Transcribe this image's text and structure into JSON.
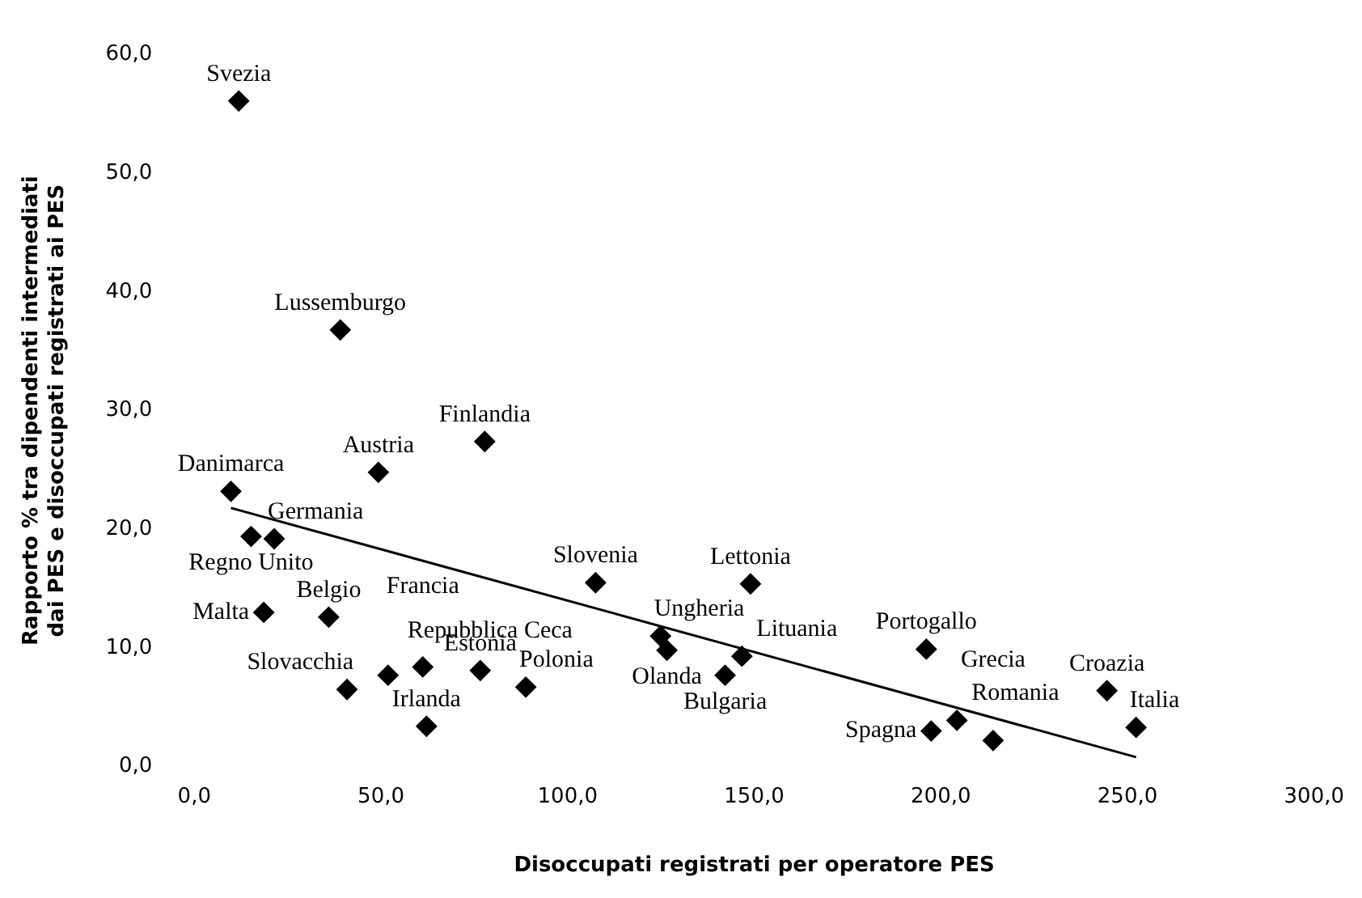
{
  "chart_data": {
    "type": "scatter",
    "xlabel": "Disoccupati registrati per operatore PES",
    "ylabel": "Rapporto % tra dipendenti intermediati dai PES e disoccupati registrati ai PES",
    "series": [
      {
        "type": "scatter",
        "color": "#000000",
        "marker": "diamond",
        "x": [
          11.9,
          39.1,
          77.8,
          49.3,
          9.8,
          15.2,
          21.4,
          18.6,
          36.0,
          40.9,
          51.9,
          61.2,
          62.2,
          76.6,
          88.8,
          107.5,
          149.0,
          124.9,
          126.6,
          142.2,
          146.7,
          196.1,
          197.4,
          204.3,
          214.0,
          244.5,
          252.3
        ],
        "values": [
          56.1,
          36.8,
          27.4,
          24.8,
          23.2,
          19.4,
          19.2,
          13.0,
          12.6,
          6.5,
          7.7,
          8.4,
          3.4,
          8.1,
          6.7,
          15.5,
          15.4,
          11.0,
          9.8,
          7.7,
          9.3,
          9.9,
          3.0,
          3.9,
          2.2,
          6.4,
          3.3
        ]
      },
      {
        "type": "line",
        "color": "#000000",
        "marker": "none",
        "x": [
          9.8,
          252.3
        ],
        "values": [
          21.8,
          0.8
        ]
      }
    ],
    "annotations": [
      {
        "text": "Svezia",
        "x": 11.9,
        "y": 56.1
      },
      {
        "text": "Lussemburgo",
        "x": 39.1,
        "y": 36.8
      },
      {
        "text": "Finlandia",
        "x": 77.8,
        "y": 27.4
      },
      {
        "text": "Austria",
        "x": 49.3,
        "y": 24.8
      },
      {
        "text": "Danimarca",
        "x": 9.8,
        "y": 23.2
      },
      {
        "text": "Regno Unito",
        "x": 15.2,
        "y": 19.4
      },
      {
        "text": "Germania",
        "x": 21.4,
        "y": 19.2
      },
      {
        "text": "Malta",
        "x": 18.6,
        "y": 13.0
      },
      {
        "text": "Belgio",
        "x": 36.0,
        "y": 12.6
      },
      {
        "text": "Slovacchia",
        "x": 40.9,
        "y": 6.5
      },
      {
        "text": "Repubblica Ceca",
        "x": 51.9,
        "y": 7.7
      },
      {
        "text": "Francia",
        "x": 61.2,
        "y": 8.4
      },
      {
        "text": "Irlanda",
        "x": 62.2,
        "y": 3.4
      },
      {
        "text": "Estonia",
        "x": 76.6,
        "y": 8.1
      },
      {
        "text": "Polonia",
        "x": 88.8,
        "y": 6.7
      },
      {
        "text": "Slovenia",
        "x": 107.5,
        "y": 15.5
      },
      {
        "text": "Lettonia",
        "x": 149.0,
        "y": 15.4
      },
      {
        "text": "Ungheria",
        "x": 124.9,
        "y": 11.0
      },
      {
        "text": "Olanda",
        "x": 126.6,
        "y": 9.8
      },
      {
        "text": "Bulgaria",
        "x": 142.2,
        "y": 7.7
      },
      {
        "text": "Lituania",
        "x": 146.7,
        "y": 9.3
      },
      {
        "text": "Portogallo",
        "x": 196.1,
        "y": 9.9
      },
      {
        "text": "Spagna",
        "x": 197.4,
        "y": 3.0
      },
      {
        "text": "Romania",
        "x": 204.3,
        "y": 3.9
      },
      {
        "text": "Grecia",
        "x": 214.0,
        "y": 2.2
      },
      {
        "text": "Croazia",
        "x": 244.5,
        "y": 6.4
      },
      {
        "text": "Italia",
        "x": 252.3,
        "y": 3.3
      }
    ],
    "xlim": [
      0,
      300
    ],
    "xticks": [
      {
        "value": 0,
        "label": "0,0"
      },
      {
        "value": 50,
        "label": "50,0"
      },
      {
        "value": 100,
        "label": "100,0"
      },
      {
        "value": 150,
        "label": "150,0"
      },
      {
        "value": 200,
        "label": "200,0"
      },
      {
        "value": 250,
        "label": "250,0"
      },
      {
        "value": 300,
        "label": "300,0"
      }
    ],
    "ylim": [
      0,
      60
    ],
    "yticks": [
      {
        "value": 0,
        "label": "0,0"
      },
      {
        "value": 10,
        "label": "10,0"
      },
      {
        "value": 20,
        "label": "20,0"
      },
      {
        "value": 30,
        "label": "30,0"
      },
      {
        "value": 40,
        "label": "40,0"
      },
      {
        "value": 50,
        "label": "50,0"
      },
      {
        "value": 60,
        "label": "60,0"
      }
    ],
    "grid": false,
    "legend": false
  }
}
